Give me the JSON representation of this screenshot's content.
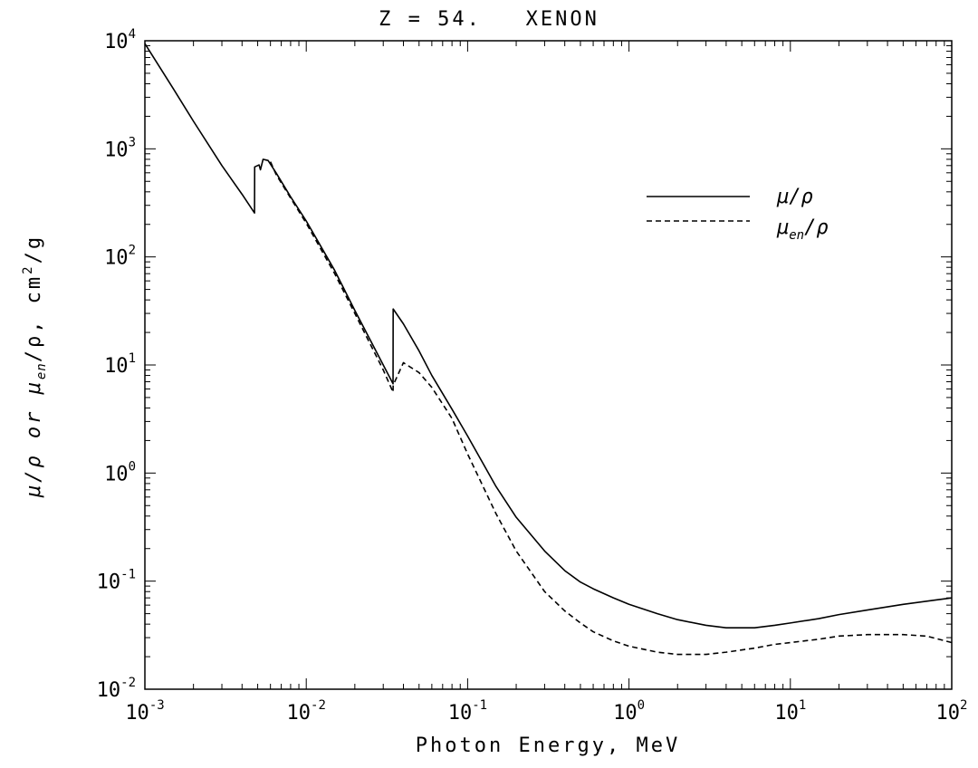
{
  "chart_data": {
    "type": "line",
    "title": "Z = 54.   XENON",
    "xlabel": "Photon Energy, MeV",
    "ylabel": {
      "parts": [
        "μ/ρ or μ",
        "en",
        "/ρ, cm",
        "2",
        "/g"
      ]
    },
    "xscale": "log",
    "yscale": "log",
    "xlim": [
      0.001,
      100
    ],
    "ylim": [
      0.01,
      10000
    ],
    "x_ticks": [
      {
        "base": "10",
        "exp": "-3",
        "value": 0.001
      },
      {
        "base": "10",
        "exp": "-2",
        "value": 0.01
      },
      {
        "base": "10",
        "exp": "-1",
        "value": 0.1
      },
      {
        "base": "10",
        "exp": "0",
        "value": 1
      },
      {
        "base": "10",
        "exp": "1",
        "value": 10
      },
      {
        "base": "10",
        "exp": "2",
        "value": 100
      }
    ],
    "y_ticks": [
      {
        "base": "10",
        "exp": "-2",
        "value": 0.01
      },
      {
        "base": "10",
        "exp": "-1",
        "value": 0.1
      },
      {
        "base": "10",
        "exp": "0",
        "value": 1
      },
      {
        "base": "10",
        "exp": "1",
        "value": 10
      },
      {
        "base": "10",
        "exp": "2",
        "value": 100
      },
      {
        "base": "10",
        "exp": "3",
        "value": 1000
      },
      {
        "base": "10",
        "exp": "4",
        "value": 10000
      }
    ],
    "grid": false,
    "legend_position": "top-right",
    "series": [
      {
        "name": "μ/ρ",
        "legend_main": "μ/ρ",
        "legend_sub": "",
        "legend_tail": "",
        "style": "solid",
        "color": "#000000",
        "points": [
          [
            0.001,
            9400
          ],
          [
            0.0015,
            3600
          ],
          [
            0.002,
            1800
          ],
          [
            0.003,
            700
          ],
          [
            0.004,
            380
          ],
          [
            0.00478,
            255
          ],
          [
            0.00479,
            680
          ],
          [
            0.0051,
            710
          ],
          [
            0.0052,
            640
          ],
          [
            0.0054,
            800
          ],
          [
            0.0056,
            790
          ],
          [
            0.0058,
            780
          ],
          [
            0.0065,
            600
          ],
          [
            0.008,
            360
          ],
          [
            0.01,
            215
          ],
          [
            0.015,
            75
          ],
          [
            0.02,
            32
          ],
          [
            0.03,
            10
          ],
          [
            0.0345,
            6.7
          ],
          [
            0.03456,
            33
          ],
          [
            0.04,
            24
          ],
          [
            0.05,
            13.5
          ],
          [
            0.06,
            8
          ],
          [
            0.08,
            3.9
          ],
          [
            0.1,
            2.2
          ],
          [
            0.15,
            0.75
          ],
          [
            0.2,
            0.39
          ],
          [
            0.3,
            0.19
          ],
          [
            0.4,
            0.125
          ],
          [
            0.5,
            0.098
          ],
          [
            0.6,
            0.085
          ],
          [
            0.8,
            0.07
          ],
          [
            1,
            0.061
          ],
          [
            1.5,
            0.05
          ],
          [
            2,
            0.044
          ],
          [
            3,
            0.039
          ],
          [
            4,
            0.037
          ],
          [
            5,
            0.037
          ],
          [
            6,
            0.037
          ],
          [
            8,
            0.039
          ],
          [
            10,
            0.041
          ],
          [
            15,
            0.045
          ],
          [
            20,
            0.049
          ],
          [
            30,
            0.054
          ],
          [
            50,
            0.061
          ],
          [
            80,
            0.067
          ],
          [
            100,
            0.07
          ]
        ]
      },
      {
        "name": "μen/ρ",
        "legend_main": "μ",
        "legend_sub": "en",
        "legend_tail": "/ρ",
        "style": "dashed",
        "color": "#000000",
        "points": [
          [
            0.006,
            760
          ],
          [
            0.0065,
            580
          ],
          [
            0.008,
            350
          ],
          [
            0.01,
            205
          ],
          [
            0.015,
            70
          ],
          [
            0.02,
            30
          ],
          [
            0.03,
            9
          ],
          [
            0.0345,
            5.6
          ],
          [
            0.03456,
            6.5
          ],
          [
            0.04,
            10.5
          ],
          [
            0.05,
            8.5
          ],
          [
            0.06,
            6.2
          ],
          [
            0.08,
            3.2
          ],
          [
            0.1,
            1.5
          ],
          [
            0.15,
            0.42
          ],
          [
            0.2,
            0.19
          ],
          [
            0.3,
            0.08
          ],
          [
            0.4,
            0.053
          ],
          [
            0.5,
            0.041
          ],
          [
            0.6,
            0.034
          ],
          [
            0.8,
            0.028
          ],
          [
            1,
            0.025
          ],
          [
            1.5,
            0.022
          ],
          [
            2,
            0.021
          ],
          [
            3,
            0.021
          ],
          [
            4,
            0.022
          ],
          [
            6,
            0.024
          ],
          [
            8,
            0.026
          ],
          [
            10,
            0.027
          ],
          [
            15,
            0.029
          ],
          [
            20,
            0.031
          ],
          [
            30,
            0.032
          ],
          [
            50,
            0.032
          ],
          [
            70,
            0.031
          ],
          [
            100,
            0.027
          ]
        ]
      }
    ]
  }
}
